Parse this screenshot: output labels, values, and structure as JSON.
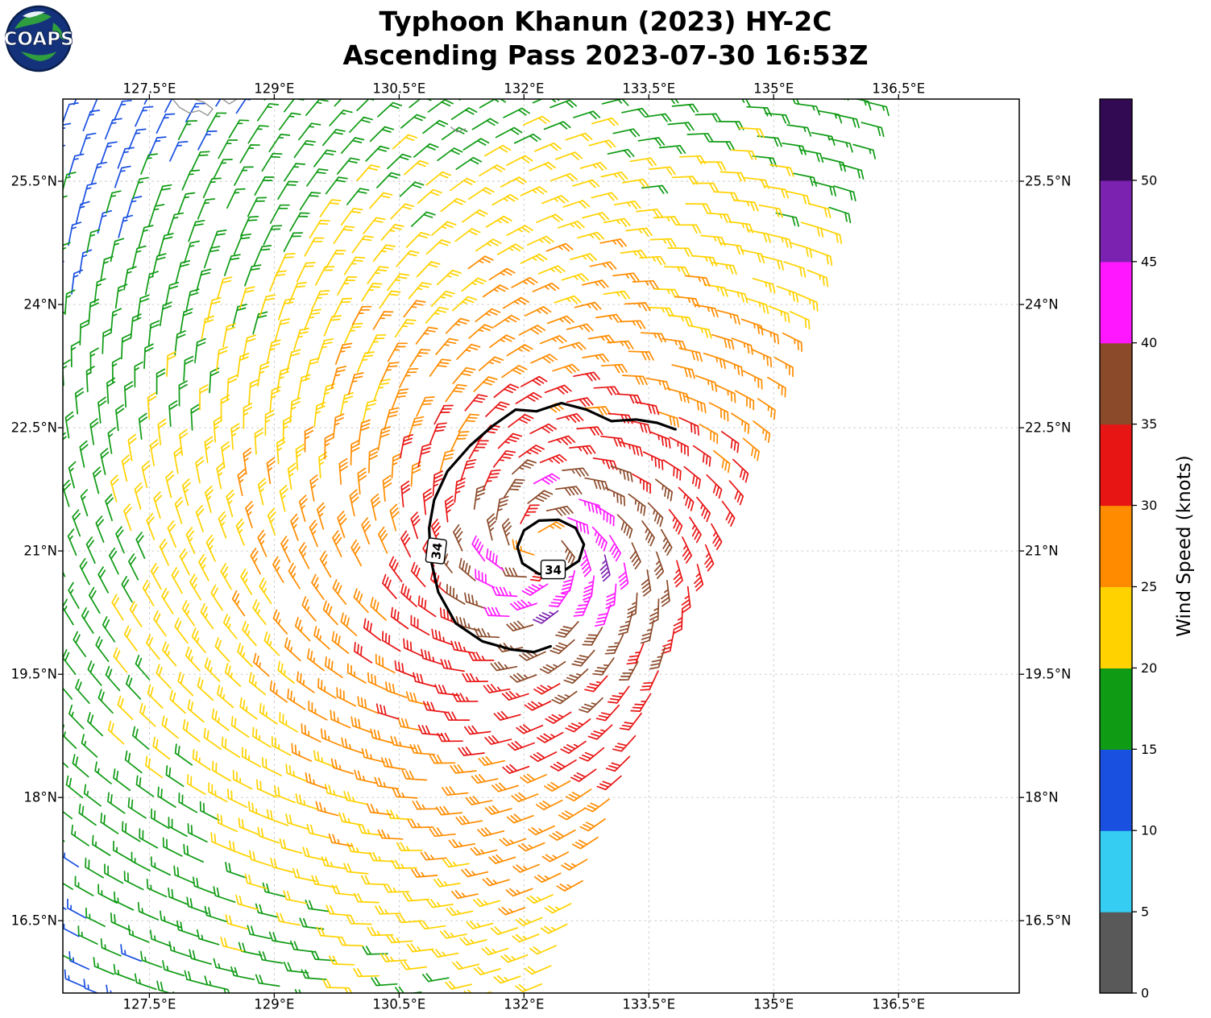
{
  "header": {
    "title_line1": "Typhoon Khanun (2023) HY-2C",
    "title_line2": "Ascending Pass 2023-07-30 16:53Z",
    "logo_text": "COAPS"
  },
  "axes": {
    "lon_range": [
      126.46,
      137.95
    ],
    "lat_range": [
      15.62,
      26.5
    ],
    "lon_ticks": [
      127.5,
      129,
      130.5,
      132,
      133.5,
      135,
      136.5
    ],
    "lon_tick_labels": [
      "127.5°E",
      "129°E",
      "130.5°E",
      "132°E",
      "133.5°E",
      "135°E",
      "136.5°E"
    ],
    "lat_ticks": [
      16.5,
      18,
      19.5,
      21,
      22.5,
      24,
      25.5
    ],
    "lat_tick_labels": [
      "16.5°N",
      "18°N",
      "19.5°N",
      "21°N",
      "22.5°N",
      "24°N",
      "25.5°N"
    ],
    "grid": "dashed"
  },
  "colorbar": {
    "label": "Wind Speed (knots)",
    "tick_values": [
      0,
      5,
      10,
      15,
      20,
      25,
      30,
      35,
      40,
      45,
      50
    ],
    "bounds": [
      0,
      5,
      10,
      15,
      20,
      25,
      30,
      35,
      40,
      45,
      50,
      55
    ],
    "colors": [
      "#595959",
      "#35cdf2",
      "#1a50e0",
      "#0f9b14",
      "#ffd200",
      "#ff8c00",
      "#e81515",
      "#8b4a2a",
      "#ff18ff",
      "#7c22b0",
      "#320a54"
    ]
  },
  "chart_data": {
    "type": "wind-barb-map",
    "title": "Typhoon Khanun (2023) HY-2C — Ascending Pass 2023-07-30 16:53Z",
    "satellite": "HY-2C",
    "units": "knots",
    "storm_center": {
      "lon": 132.2,
      "lat": 21.05
    },
    "radial_wind_profile_knots": [
      [
        0,
        20
      ],
      [
        0.15,
        27
      ],
      [
        0.3,
        36
      ],
      [
        0.5,
        41
      ],
      [
        0.75,
        42
      ],
      [
        1.0,
        38
      ],
      [
        1.3,
        35
      ],
      [
        1.7,
        32.5
      ],
      [
        2.2,
        30.5
      ],
      [
        2.8,
        28
      ],
      [
        3.3,
        26.5
      ],
      [
        3.8,
        25
      ],
      [
        4.5,
        22.5
      ],
      [
        5.2,
        20.5
      ],
      [
        6.0,
        18.5
      ],
      [
        7.0,
        16
      ],
      [
        8.0,
        13.5
      ],
      [
        9.5,
        11.5
      ]
    ],
    "asymmetry": {
      "amplitude": 0.09,
      "direction_deg": -45
    },
    "inflow_angle_deg": 22,
    "swath": {
      "edge_lon": 132.3,
      "edge_lat": 15.7,
      "along_track_dir": [
        0.342,
        0.94
      ],
      "width_deg": 11.6,
      "length_deg": 14.2,
      "start_offset_deg": -2.2,
      "grid_spacing_deg": 0.272
    },
    "noise_amplitude_knots": 1.7,
    "contours": [
      {
        "level": 34,
        "label": "34",
        "closed": false,
        "label_pos": [
          130.95,
          21.0
        ],
        "label_rotation_deg": -83,
        "points": [
          [
            133.82,
            22.48
          ],
          [
            133.6,
            22.56
          ],
          [
            133.35,
            22.6
          ],
          [
            133.05,
            22.58
          ],
          [
            132.75,
            22.72
          ],
          [
            132.45,
            22.8
          ],
          [
            132.15,
            22.7
          ],
          [
            131.9,
            22.72
          ],
          [
            131.62,
            22.52
          ],
          [
            131.35,
            22.28
          ],
          [
            131.08,
            21.97
          ],
          [
            130.92,
            21.62
          ],
          [
            130.86,
            21.28
          ],
          [
            130.88,
            20.9
          ],
          [
            130.97,
            20.5
          ],
          [
            131.18,
            20.12
          ],
          [
            131.5,
            19.9
          ],
          [
            131.85,
            19.8
          ],
          [
            132.12,
            19.77
          ],
          [
            132.32,
            19.84
          ]
        ]
      },
      {
        "level": 34,
        "label": "34",
        "closed": true,
        "label_pos": [
          132.35,
          20.77
        ],
        "label_rotation_deg": 0,
        "points": [
          [
            132.0,
            21.25
          ],
          [
            132.18,
            21.37
          ],
          [
            132.42,
            21.38
          ],
          [
            132.62,
            21.28
          ],
          [
            132.72,
            21.08
          ],
          [
            132.66,
            20.88
          ],
          [
            132.45,
            20.74
          ],
          [
            132.18,
            20.72
          ],
          [
            131.98,
            20.85
          ],
          [
            131.92,
            21.05
          ]
        ]
      }
    ],
    "coastlines": [
      [
        [
          127.78,
          26.5
        ],
        [
          127.86,
          26.4
        ],
        [
          127.98,
          26.33
        ],
        [
          128.1,
          26.36
        ],
        [
          128.2,
          26.3
        ],
        [
          128.26,
          26.38
        ],
        [
          128.16,
          26.46
        ],
        [
          128.04,
          26.5
        ]
      ],
      [
        [
          128.38,
          26.5
        ],
        [
          128.46,
          26.44
        ],
        [
          128.55,
          26.5
        ]
      ],
      [
        [
          131.12,
          26.16
        ],
        [
          131.2,
          26.1
        ],
        [
          131.3,
          26.14
        ]
      ]
    ]
  }
}
